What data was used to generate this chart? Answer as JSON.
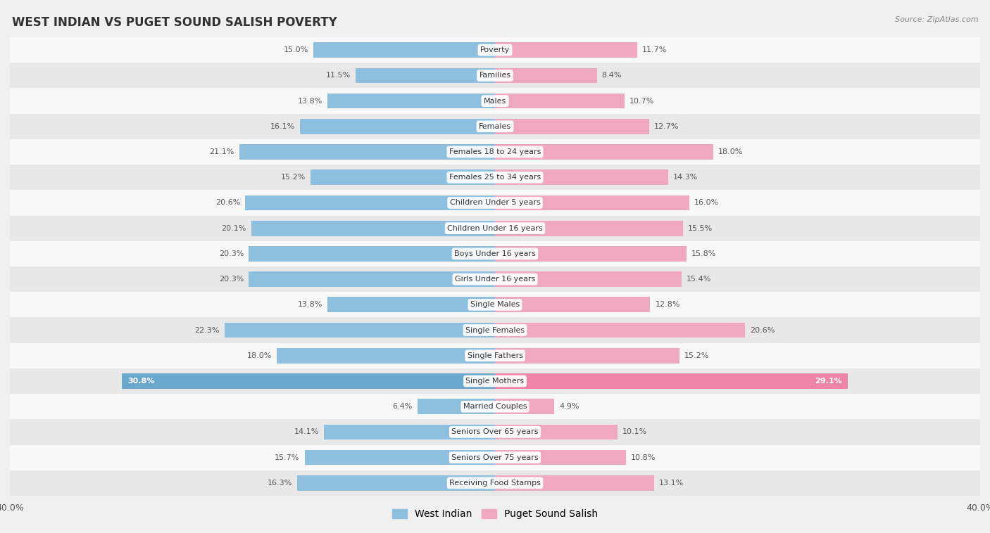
{
  "title": "WEST INDIAN VS PUGET SOUND SALISH POVERTY",
  "source": "Source: ZipAtlas.com",
  "categories": [
    "Poverty",
    "Families",
    "Males",
    "Females",
    "Females 18 to 24 years",
    "Females 25 to 34 years",
    "Children Under 5 years",
    "Children Under 16 years",
    "Boys Under 16 years",
    "Girls Under 16 years",
    "Single Males",
    "Single Females",
    "Single Fathers",
    "Single Mothers",
    "Married Couples",
    "Seniors Over 65 years",
    "Seniors Over 75 years",
    "Receiving Food Stamps"
  ],
  "west_indian": [
    15.0,
    11.5,
    13.8,
    16.1,
    21.1,
    15.2,
    20.6,
    20.1,
    20.3,
    20.3,
    13.8,
    22.3,
    18.0,
    30.8,
    6.4,
    14.1,
    15.7,
    16.3
  ],
  "puget_sound": [
    11.7,
    8.4,
    10.7,
    12.7,
    18.0,
    14.3,
    16.0,
    15.5,
    15.8,
    15.4,
    12.8,
    20.6,
    15.2,
    29.1,
    4.9,
    10.1,
    10.8,
    13.1
  ],
  "west_indian_color": "#8fbfde",
  "puget_sound_color": "#f0a8c0",
  "highlight_color_wi": "#6aa8ce",
  "highlight_color_ps": "#ee85a8",
  "background_color": "#f0f0f0",
  "row_light_color": "#f8f8f8",
  "row_dark_color": "#e8e8e8",
  "xlim": 40.0,
  "bar_height": 0.6,
  "title_fontsize": 12,
  "label_fontsize": 8,
  "value_fontsize": 8,
  "legend_fontsize": 10
}
